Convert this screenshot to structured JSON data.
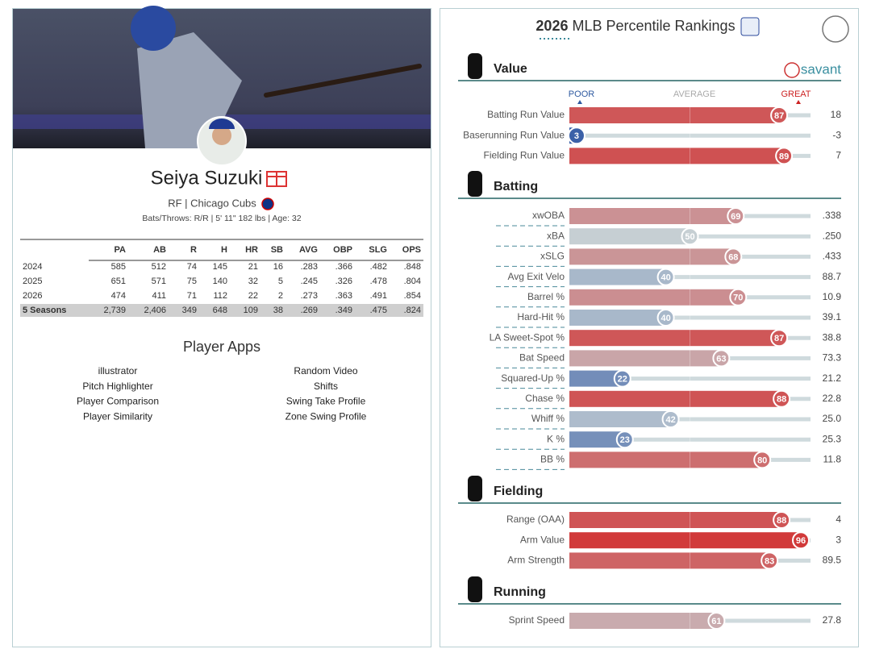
{
  "player": {
    "name": "Seiya Suzuki",
    "team_line": "RF | Chicago Cubs",
    "bio": "Bats/Throws: R/R | 5' 11\" 182 lbs | Age: 32"
  },
  "stats": {
    "headers": [
      "PA",
      "AB",
      "R",
      "H",
      "HR",
      "SB",
      "AVG",
      "OBP",
      "SLG",
      "OPS"
    ],
    "rows": [
      {
        "label": "2024",
        "values": [
          "585",
          "512",
          "74",
          "145",
          "21",
          "16",
          ".283",
          ".366",
          ".482",
          ".848"
        ]
      },
      {
        "label": "2025",
        "values": [
          "651",
          "571",
          "75",
          "140",
          "32",
          "5",
          ".245",
          ".326",
          ".478",
          ".804"
        ]
      },
      {
        "label": "2026",
        "values": [
          "474",
          "411",
          "71",
          "112",
          "22",
          "2",
          ".273",
          ".363",
          ".491",
          ".854"
        ]
      },
      {
        "label": "5 Seasons",
        "values": [
          "2,739",
          "2,406",
          "349",
          "648",
          "109",
          "38",
          ".269",
          ".349",
          ".475",
          ".824"
        ]
      }
    ]
  },
  "apps": {
    "title": "Player Apps",
    "left": [
      "illustrator",
      "Pitch Highlighter",
      "Player Comparison",
      "Player Similarity"
    ],
    "right": [
      "Random Video",
      "Shifts",
      "Swing Take Profile",
      "Zone Swing Profile"
    ]
  },
  "rankings": {
    "year": "2026",
    "title": "MLB Percentile Rankings",
    "brand": "savant",
    "scale": [
      "POOR",
      "AVERAGE",
      "GREAT"
    ],
    "sections": [
      {
        "name": "Value",
        "rows": [
          {
            "label": "Batting Run Value",
            "percentile": 87,
            "value": "18"
          },
          {
            "label": "Baserunning Run Value",
            "percentile": 3,
            "value": "-3"
          },
          {
            "label": "Fielding Run Value",
            "percentile": 89,
            "value": "7"
          }
        ]
      },
      {
        "name": "Batting",
        "rows": [
          {
            "label": "xwOBA",
            "percentile": 69,
            "value": ".338"
          },
          {
            "label": "xBA",
            "percentile": 50,
            "value": ".250"
          },
          {
            "label": "xSLG",
            "percentile": 68,
            "value": ".433"
          },
          {
            "label": "Avg Exit Velo",
            "percentile": 40,
            "value": "88.7"
          },
          {
            "label": "Barrel %",
            "percentile": 70,
            "value": "10.9"
          },
          {
            "label": "Hard-Hit %",
            "percentile": 40,
            "value": "39.1"
          },
          {
            "label": "LA Sweet-Spot %",
            "percentile": 87,
            "value": "38.8"
          },
          {
            "label": "Bat Speed",
            "percentile": 63,
            "value": "73.3"
          },
          {
            "label": "Squared-Up %",
            "percentile": 22,
            "value": "21.2"
          },
          {
            "label": "Chase %",
            "percentile": 88,
            "value": "22.8"
          },
          {
            "label": "Whiff %",
            "percentile": 42,
            "value": "25.0"
          },
          {
            "label": "K %",
            "percentile": 23,
            "value": "25.3"
          },
          {
            "label": "BB %",
            "percentile": 80,
            "value": "11.8"
          }
        ]
      },
      {
        "name": "Fielding",
        "rows": [
          {
            "label": "Range (OAA)",
            "percentile": 88,
            "value": "4"
          },
          {
            "label": "Arm Value",
            "percentile": 96,
            "value": "3"
          },
          {
            "label": "Arm Strength",
            "percentile": 83,
            "value": "89.5"
          }
        ]
      },
      {
        "name": "Running",
        "rows": [
          {
            "label": "Sprint Speed",
            "percentile": 61,
            "value": "27.8"
          }
        ]
      }
    ]
  }
}
